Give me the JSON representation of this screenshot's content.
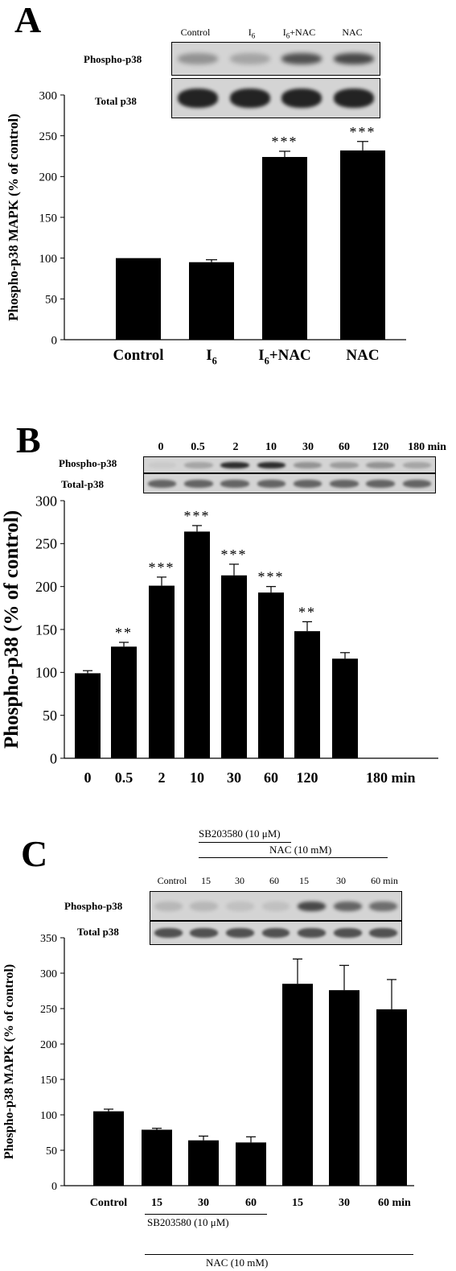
{
  "colors": {
    "bar": "#000000",
    "blot_bg": "#d4d4d4",
    "band": "#2a2a2a"
  },
  "panel_a": {
    "label": "A",
    "blot_lanes": [
      "Control",
      "I6",
      "I6+NAC",
      "NAC"
    ],
    "blot_rows": [
      "Phospho-p38",
      "Total p38"
    ],
    "band_intensity": {
      "phospho": [
        0.35,
        0.25,
        0.7,
        0.75
      ],
      "total": [
        0.95,
        0.95,
        0.95,
        0.95
      ]
    }
  },
  "panel_b": {
    "label": "B",
    "blot_lanes": [
      "0",
      "0.5",
      "2",
      "10",
      "30",
      "60",
      "120",
      "180 min"
    ],
    "blot_rows": [
      "Phospho-p38",
      "Total-p38"
    ],
    "band_intensity": {
      "phospho": [
        0.05,
        0.25,
        0.9,
        0.9,
        0.35,
        0.3,
        0.35,
        0.25
      ],
      "total": [
        0.6,
        0.6,
        0.6,
        0.6,
        0.6,
        0.6,
        0.6,
        0.6
      ]
    }
  },
  "panel_c": {
    "label": "C",
    "blot_lanes": [
      "Control",
      "15",
      "30",
      "60",
      "15",
      "30",
      "60 min"
    ],
    "blot_rows": [
      "Phospho-p38",
      "Total p38"
    ],
    "band_intensity": {
      "phospho": [
        0.15,
        0.15,
        0.1,
        0.1,
        0.75,
        0.6,
        0.55
      ],
      "total": [
        0.7,
        0.7,
        0.7,
        0.7,
        0.7,
        0.7,
        0.7
      ]
    },
    "blot_condition_top": "SB203580 (10 μM)",
    "blot_condition_nac": "NAC (10 mM)",
    "axis_condition_sb": "SB203580 (10 μM)",
    "axis_condition_nac": "NAC (10 mM)"
  },
  "chart_data": [
    {
      "type": "bar",
      "ylabel": "Phospho-p38 MAPK (% of control)",
      "categories": [
        "Control",
        "I6",
        "I6+NAC",
        "NAC"
      ],
      "values": [
        100,
        95,
        224,
        232
      ],
      "errors": [
        0,
        3,
        7,
        11
      ],
      "significance": [
        "",
        "",
        "***",
        "***"
      ],
      "ylim": [
        0,
        300
      ],
      "yticks": [
        0,
        50,
        100,
        150,
        200,
        250,
        300
      ]
    },
    {
      "type": "bar",
      "ylabel": "Phospho-p38 (% of control)",
      "categories": [
        "0",
        "0.5",
        "2",
        "10",
        "30",
        "60",
        "120",
        "180 min"
      ],
      "values": [
        99,
        130,
        201,
        264,
        213,
        193,
        148,
        116
      ],
      "errors": [
        3,
        5,
        10,
        7,
        13,
        7,
        11,
        7
      ],
      "significance": [
        "",
        "**",
        "***",
        "***",
        "***",
        "***",
        "**",
        ""
      ],
      "ylim": [
        0,
        300
      ],
      "yticks": [
        0,
        50,
        100,
        150,
        200,
        250,
        300
      ]
    },
    {
      "type": "bar",
      "ylabel": "Phospho-p38 MAPK (% of control)",
      "categories": [
        "Control",
        "15",
        "30",
        "60",
        "15",
        "30",
        "60 min"
      ],
      "values": [
        105,
        79,
        64,
        61,
        285,
        276,
        249
      ],
      "errors": [
        3,
        2,
        6,
        8,
        35,
        35,
        42
      ],
      "significance": [
        "",
        "",
        "",
        "",
        "",
        "",
        ""
      ],
      "ylim": [
        0,
        350
      ],
      "yticks": [
        0,
        50,
        100,
        150,
        200,
        250,
        300,
        350
      ]
    }
  ]
}
